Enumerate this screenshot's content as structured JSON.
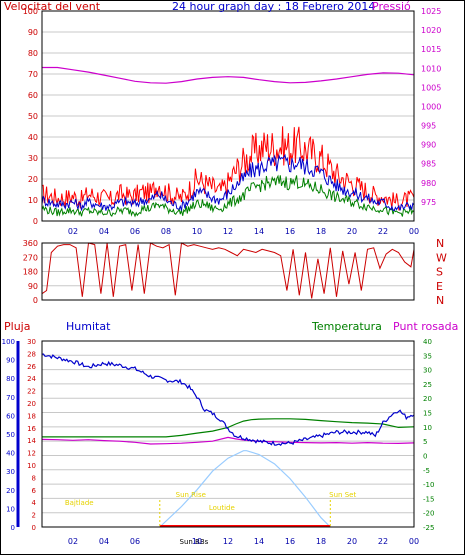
{
  "header": {
    "left_title": "Velocitat del vent",
    "center_title": "24 hour graph day : 18 Febrero 2014",
    "right_title": "Pressió"
  },
  "colors": {
    "background": "#ffffff",
    "frame": "#000000",
    "grid": "#c8c8c8",
    "wind_gust": "#ff0000",
    "wind_avg": "#0000cc",
    "wind_speed": "#008000",
    "pressure": "#cc00cc",
    "direction": "#cc0000",
    "humidity": "#0000cc",
    "temperature": "#008000",
    "dew_point": "#cc00cc",
    "sun": "#99ccff",
    "rain": "#ff0000",
    "sun_label": "#e6d200"
  },
  "x_ticks": [
    "02",
    "04",
    "06",
    "08",
    "10",
    "12",
    "14",
    "16",
    "18",
    "20",
    "22",
    "00"
  ],
  "chart_data": [
    {
      "type": "line",
      "title": "Velocitat del vent / Pressió",
      "x_range": [
        0,
        24
      ],
      "y_left": {
        "label": "Velocitat del vent",
        "range": [
          0,
          100
        ],
        "ticks": [
          "0",
          "10",
          "20",
          "30",
          "40",
          "50",
          "60",
          "70",
          "80",
          "90",
          "100"
        ]
      },
      "y_right": {
        "label": "Pressió",
        "range": [
          970,
          1025
        ],
        "ticks": [
          "975",
          "980",
          "985",
          "990",
          "995",
          "1000",
          "1005",
          "1010",
          "1015",
          "1020",
          "1025"
        ]
      },
      "grid": true,
      "series": [
        {
          "axis": "left",
          "x": [
            0,
            0.5,
            1,
            1.5,
            2,
            2.5,
            3,
            3.5,
            4,
            4.5,
            5,
            5.5,
            6,
            6.5,
            7,
            7.5,
            8,
            8.5,
            9,
            9.5,
            10,
            10.5,
            11,
            11.5,
            12,
            12.5,
            13,
            13.5,
            14,
            14.5,
            15,
            15.5,
            16,
            16.5,
            17,
            17.5,
            18,
            18.5,
            19,
            19.5,
            20,
            20.5,
            21,
            21.5,
            22,
            22.5,
            23,
            23.5,
            24
          ],
          "values": [
            13,
            12,
            11,
            11,
            12,
            10,
            13,
            12,
            11,
            10,
            13,
            12,
            12,
            14,
            13,
            18,
            14,
            12,
            11,
            15,
            20,
            18,
            16,
            14,
            18,
            24,
            28,
            32,
            34,
            36,
            35,
            36,
            35,
            36,
            34,
            32,
            30,
            26,
            22,
            20,
            18,
            16,
            14,
            12,
            12,
            10,
            9,
            10,
            11
          ]
        },
        {
          "axis": "left",
          "x": [
            0,
            0.5,
            1,
            1.5,
            2,
            2.5,
            3,
            3.5,
            4,
            4.5,
            5,
            5.5,
            6,
            6.5,
            7,
            7.5,
            8,
            8.5,
            9,
            9.5,
            10,
            10.5,
            11,
            11.5,
            12,
            12.5,
            13,
            13.5,
            14,
            14.5,
            15,
            15.5,
            16,
            16.5,
            17,
            17.5,
            18,
            18.5,
            19,
            19.5,
            20,
            20.5,
            21,
            21.5,
            22,
            22.5,
            23,
            23.5,
            24
          ],
          "values": [
            10,
            9,
            8,
            8,
            9,
            7,
            9,
            8,
            7,
            7,
            9,
            9,
            8,
            10,
            10,
            13,
            10,
            8,
            7,
            10,
            14,
            13,
            11,
            10,
            13,
            17,
            20,
            24,
            25,
            27,
            27,
            28,
            27,
            28,
            26,
            25,
            23,
            20,
            17,
            15,
            14,
            12,
            11,
            9,
            9,
            7,
            6,
            7,
            8
          ]
        },
        {
          "axis": "left",
          "x": [
            0,
            0.5,
            1,
            1.5,
            2,
            2.5,
            3,
            3.5,
            4,
            4.5,
            5,
            5.5,
            6,
            6.5,
            7,
            7.5,
            8,
            8.5,
            9,
            9.5,
            10,
            10.5,
            11,
            11.5,
            12,
            12.5,
            13,
            13.5,
            14,
            14.5,
            15,
            15.5,
            16,
            16.5,
            17,
            17.5,
            18,
            18.5,
            19,
            19.5,
            20,
            20.5,
            21,
            21.5,
            22,
            22.5,
            23,
            23.5,
            24
          ],
          "values": [
            6,
            5,
            4,
            5,
            5,
            4,
            5,
            4,
            4,
            4,
            5,
            5,
            4,
            6,
            6,
            8,
            6,
            5,
            4,
            6,
            8,
            8,
            6,
            6,
            8,
            10,
            12,
            15,
            17,
            18,
            18,
            19,
            18,
            19,
            17,
            16,
            15,
            13,
            11,
            10,
            9,
            8,
            7,
            6,
            6,
            4,
            4,
            4,
            5
          ]
        },
        {
          "axis": "right",
          "x": [
            0,
            1,
            2,
            3,
            4,
            5,
            6,
            7,
            8,
            9,
            10,
            11,
            12,
            13,
            14,
            15,
            16,
            17,
            18,
            19,
            20,
            21,
            22,
            23,
            24
          ],
          "values": [
            1010.2,
            1010.2,
            1009.6,
            1009.0,
            1008.2,
            1007.4,
            1006.6,
            1006.2,
            1006.1,
            1006.5,
            1007.2,
            1007.6,
            1007.8,
            1007.6,
            1007.0,
            1006.5,
            1006.2,
            1006.3,
            1006.7,
            1007.2,
            1007.8,
            1008.4,
            1008.8,
            1008.7,
            1008.3
          ]
        }
      ]
    },
    {
      "type": "line",
      "title": "Direcció del vent",
      "x_range": [
        0,
        24
      ],
      "y_left": {
        "range": [
          0,
          360
        ],
        "ticks": [
          "0",
          "90",
          "180",
          "270",
          "360"
        ]
      },
      "y_right": {
        "ticks": [
          "N",
          "W",
          "S",
          "E",
          "N"
        ]
      },
      "grid": true,
      "series": [
        {
          "axis": "left",
          "x": [
            0,
            0.3,
            0.6,
            1.0,
            1.4,
            1.8,
            2.2,
            2.6,
            3.0,
            3.4,
            3.8,
            4.2,
            4.6,
            5.0,
            5.4,
            5.8,
            6.2,
            6.6,
            7.0,
            7.4,
            7.8,
            8.2,
            8.6,
            9.0,
            9.4,
            9.8,
            10.2,
            10.6,
            11.0,
            11.4,
            11.8,
            12.2,
            12.6,
            13.0,
            13.4,
            13.8,
            14.2,
            14.6,
            15.0,
            15.4,
            15.8,
            16.2,
            16.6,
            17.0,
            17.4,
            17.8,
            18.2,
            18.6,
            19.0,
            19.4,
            19.8,
            20.2,
            20.6,
            21.0,
            21.4,
            21.8,
            22.2,
            22.6,
            23.0,
            23.4,
            23.8,
            24
          ],
          "values": [
            40,
            60,
            300,
            340,
            350,
            350,
            330,
            20,
            360,
            350,
            40,
            360,
            20,
            340,
            350,
            60,
            350,
            40,
            360,
            340,
            330,
            350,
            30,
            360,
            340,
            350,
            340,
            330,
            320,
            330,
            320,
            300,
            280,
            320,
            310,
            300,
            320,
            310,
            300,
            280,
            60,
            320,
            30,
            300,
            10,
            260,
            40,
            330,
            20,
            310,
            100,
            300,
            60,
            320,
            330,
            200,
            290,
            320,
            300,
            240,
            210,
            320
          ]
        }
      ]
    },
    {
      "type": "line",
      "title": "Pluja / Humitat / Temperatura / Punt rosada",
      "x_range": [
        0,
        24
      ],
      "legend": [
        "Pluja",
        "Humitat",
        "Temperatura",
        "Punt rosada"
      ],
      "y_rain": {
        "label": "Pluja",
        "range": [
          0,
          100
        ],
        "ticks": [
          "0",
          "10",
          "20",
          "30",
          "40",
          "50",
          "60",
          "70",
          "80",
          "90",
          "100"
        ]
      },
      "y_humidity": {
        "label": "Humitat",
        "range": [
          0,
          30
        ],
        "ticks": [
          "0",
          "2",
          "4",
          "6",
          "8",
          "10",
          "12",
          "14",
          "16",
          "18",
          "20",
          "22",
          "24",
          "26",
          "28",
          "30"
        ]
      },
      "y_right": {
        "label": "Temperatura / Punt rosada",
        "range": [
          -25,
          40
        ],
        "ticks": [
          "-25",
          "-20",
          "-15",
          "-10",
          "-5",
          "0",
          "5",
          "10",
          "15",
          "20",
          "25",
          "30",
          "35",
          "40"
        ]
      },
      "grid": true,
      "series": [
        {
          "name": "Humitat",
          "axis": "left",
          "x": [
            0,
            1,
            2,
            3,
            4,
            5,
            6,
            7,
            8,
            9,
            9.5,
            10,
            10.5,
            11,
            11.5,
            12,
            12.5,
            13,
            13.5,
            14,
            15,
            16,
            17,
            18,
            19,
            20,
            21,
            21.5,
            22,
            22.5,
            23,
            23.5,
            24
          ],
          "values": [
            93,
            91,
            89,
            86,
            88,
            87,
            85,
            81,
            79,
            78,
            75,
            70,
            63,
            61,
            58,
            53,
            49,
            48,
            47,
            46,
            45,
            45,
            47,
            49,
            51,
            51,
            51,
            49,
            56,
            60,
            63,
            59,
            61
          ]
        },
        {
          "name": "Temperatura",
          "axis": "right",
          "x": [
            0,
            2,
            4,
            6,
            7,
            8,
            9,
            10,
            11,
            12,
            12.5,
            13,
            13.5,
            14,
            15,
            16,
            17,
            18,
            19,
            20,
            21,
            22,
            23,
            24
          ],
          "values": [
            6.5,
            6.5,
            6.5,
            6.5,
            6.5,
            6.5,
            7.0,
            7.8,
            8.5,
            9.8,
            11,
            12,
            12.5,
            12.7,
            12.8,
            12.8,
            12.6,
            12.2,
            11.8,
            11.5,
            11.3,
            11.0,
            9.8,
            10.0
          ]
        },
        {
          "name": "Punt rosada",
          "axis": "right",
          "x": [
            0,
            1,
            2,
            3,
            4,
            5,
            6,
            7,
            8,
            9,
            10,
            11,
            12,
            12.5,
            13,
            13.5,
            14,
            15,
            16,
            17,
            18,
            19,
            20,
            21,
            22,
            23,
            24
          ],
          "values": [
            5.6,
            5.5,
            5.3,
            5.5,
            5.2,
            5.0,
            4.6,
            4.0,
            4.1,
            4.3,
            4.6,
            5.0,
            6.3,
            5.8,
            5.4,
            5.2,
            4.9,
            4.8,
            4.6,
            4.5,
            4.4,
            4.5,
            4.3,
            4.5,
            4.3,
            4.2,
            4.4
          ]
        },
        {
          "name": "Sun",
          "axis": "left",
          "x": [
            7.6,
            9,
            10,
            11,
            12,
            13,
            13.2,
            14,
            15,
            16,
            17,
            18,
            18.6
          ],
          "values": [
            0,
            11,
            20,
            30,
            37,
            41,
            41,
            39,
            34,
            26,
            16,
            5,
            0
          ]
        }
      ],
      "annotations": [
        "Bajtlade",
        "Sun Rise",
        "Loutide",
        "Sun Set",
        "Sun BBs"
      ]
    }
  ]
}
